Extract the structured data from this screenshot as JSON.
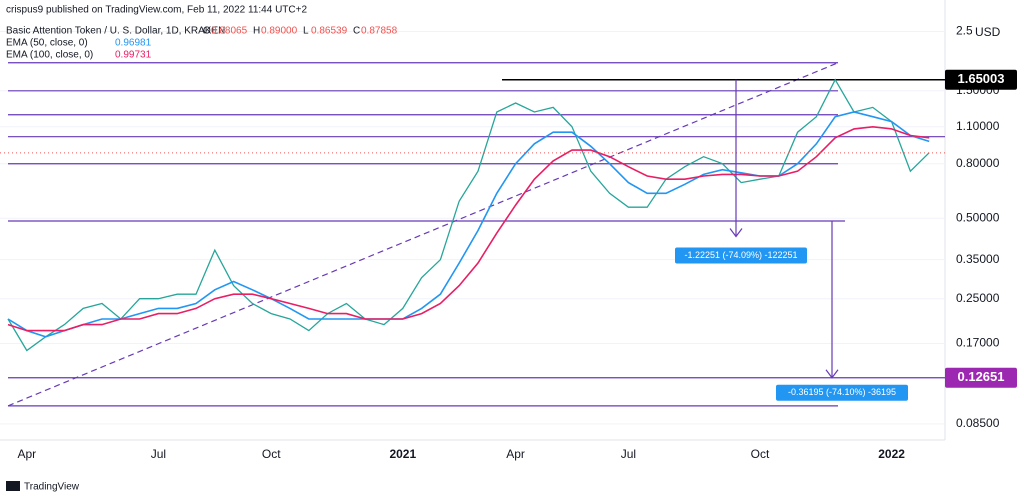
{
  "header": {
    "publisher": "crispus9 published on TradingView.com, Feb 11, 2022 11:44 UTC+2",
    "footer": "TradingView"
  },
  "chart_data": {
    "type": "line",
    "title": "Basic Attention Token / U. S. Dollar, 1D, KRAKEN",
    "unit": "USD",
    "ohlc": {
      "names": [
        "O",
        "H",
        "L",
        "C"
      ],
      "values": [
        0.88065,
        0.89,
        0.86539,
        0.87858
      ],
      "value_labels": [
        "0.88065",
        "0.89000",
        "0.86539",
        "0.87858"
      ]
    },
    "categories": [
      null,
      "Apr",
      null,
      null,
      null,
      null,
      null,
      null,
      "Jul",
      null,
      null,
      null,
      null,
      null,
      "Oct",
      null,
      null,
      null,
      null,
      null,
      null,
      "2021",
      null,
      null,
      null,
      null,
      null,
      "Apr",
      null,
      null,
      null,
      null,
      null,
      "Jul",
      null,
      null,
      null,
      null,
      null,
      null,
      "Oct",
      null,
      null,
      null,
      null,
      null,
      null,
      "2022",
      null,
      null
    ],
    "values": [
      0.21,
      0.16,
      0.18,
      0.2,
      0.23,
      0.24,
      0.21,
      0.25,
      0.25,
      0.26,
      0.26,
      0.38,
      0.28,
      0.24,
      0.22,
      0.21,
      0.19,
      0.22,
      0.24,
      0.21,
      0.2,
      0.23,
      0.3,
      0.35,
      0.58,
      0.75,
      1.25,
      1.35,
      1.25,
      1.3,
      1.1,
      0.75,
      0.62,
      0.55,
      0.55,
      0.7,
      0.78,
      0.85,
      0.8,
      0.68,
      0.7,
      0.72,
      1.05,
      1.2,
      1.65,
      1.25,
      1.3,
      1.15,
      0.75,
      0.88
    ],
    "color": "#26a69a",
    "series": [
      {
        "name": "EMA (50, close, 0)",
        "color": "#2196f3",
        "last": 0.96981,
        "last_label": "0.96981",
        "values": [
          0.21,
          0.19,
          0.18,
          0.19,
          0.2,
          0.21,
          0.21,
          0.22,
          0.23,
          0.23,
          0.24,
          0.27,
          0.29,
          0.27,
          0.25,
          0.23,
          0.21,
          0.21,
          0.21,
          0.21,
          0.21,
          0.21,
          0.23,
          0.26,
          0.34,
          0.45,
          0.62,
          0.8,
          0.95,
          1.05,
          1.05,
          0.93,
          0.8,
          0.68,
          0.62,
          0.62,
          0.67,
          0.73,
          0.76,
          0.74,
          0.72,
          0.72,
          0.8,
          0.95,
          1.2,
          1.25,
          1.2,
          1.15,
          1.02,
          0.97
        ]
      },
      {
        "name": "EMA (100, close, 0)",
        "color": "#e91e63",
        "last": 0.99731,
        "last_label": "0.99731",
        "values": [
          0.2,
          0.19,
          0.19,
          0.19,
          0.2,
          0.2,
          0.21,
          0.21,
          0.22,
          0.22,
          0.23,
          0.25,
          0.26,
          0.26,
          0.25,
          0.24,
          0.23,
          0.22,
          0.22,
          0.21,
          0.21,
          0.21,
          0.22,
          0.24,
          0.28,
          0.34,
          0.44,
          0.56,
          0.7,
          0.82,
          0.9,
          0.9,
          0.85,
          0.78,
          0.72,
          0.7,
          0.7,
          0.72,
          0.73,
          0.73,
          0.72,
          0.72,
          0.75,
          0.85,
          1.0,
          1.08,
          1.1,
          1.08,
          1.02,
          1.0
        ]
      }
    ],
    "log_scale": true,
    "ylim": [
      0.074,
      3.28
    ],
    "yticks": [
      {
        "value": 2.5,
        "label": "2.50000"
      },
      {
        "value": 1.5,
        "label": "1.50000"
      },
      {
        "value": 1.1,
        "label": "1.10000"
      },
      {
        "value": 0.8,
        "label": "0.80000"
      },
      {
        "value": 0.5,
        "label": "0.50000"
      },
      {
        "value": 0.35,
        "label": "0.35000"
      },
      {
        "value": 0.25,
        "label": "0.25000"
      },
      {
        "value": 0.17,
        "label": "0.17000"
      },
      {
        "value": 0.085,
        "label": "0.08500"
      }
    ],
    "levels": [
      1.91,
      1.5,
      1.22,
      1.01,
      0.8,
      0.48846,
      0.12651,
      0.0993
    ],
    "level_color": "#673ab7",
    "resistance": {
      "value": 1.65003,
      "color": "#000000"
    },
    "badge": {
      "value": 0.12651,
      "color": "#9c27b0"
    },
    "measures": [
      {
        "from": 1.65003,
        "to": 0.42752,
        "label": "-1.22251 (-74.09%) -122251"
      },
      {
        "from": 0.48846,
        "to": 0.12651,
        "label": "-0.36195 (-74.10%) -36195"
      }
    ]
  }
}
